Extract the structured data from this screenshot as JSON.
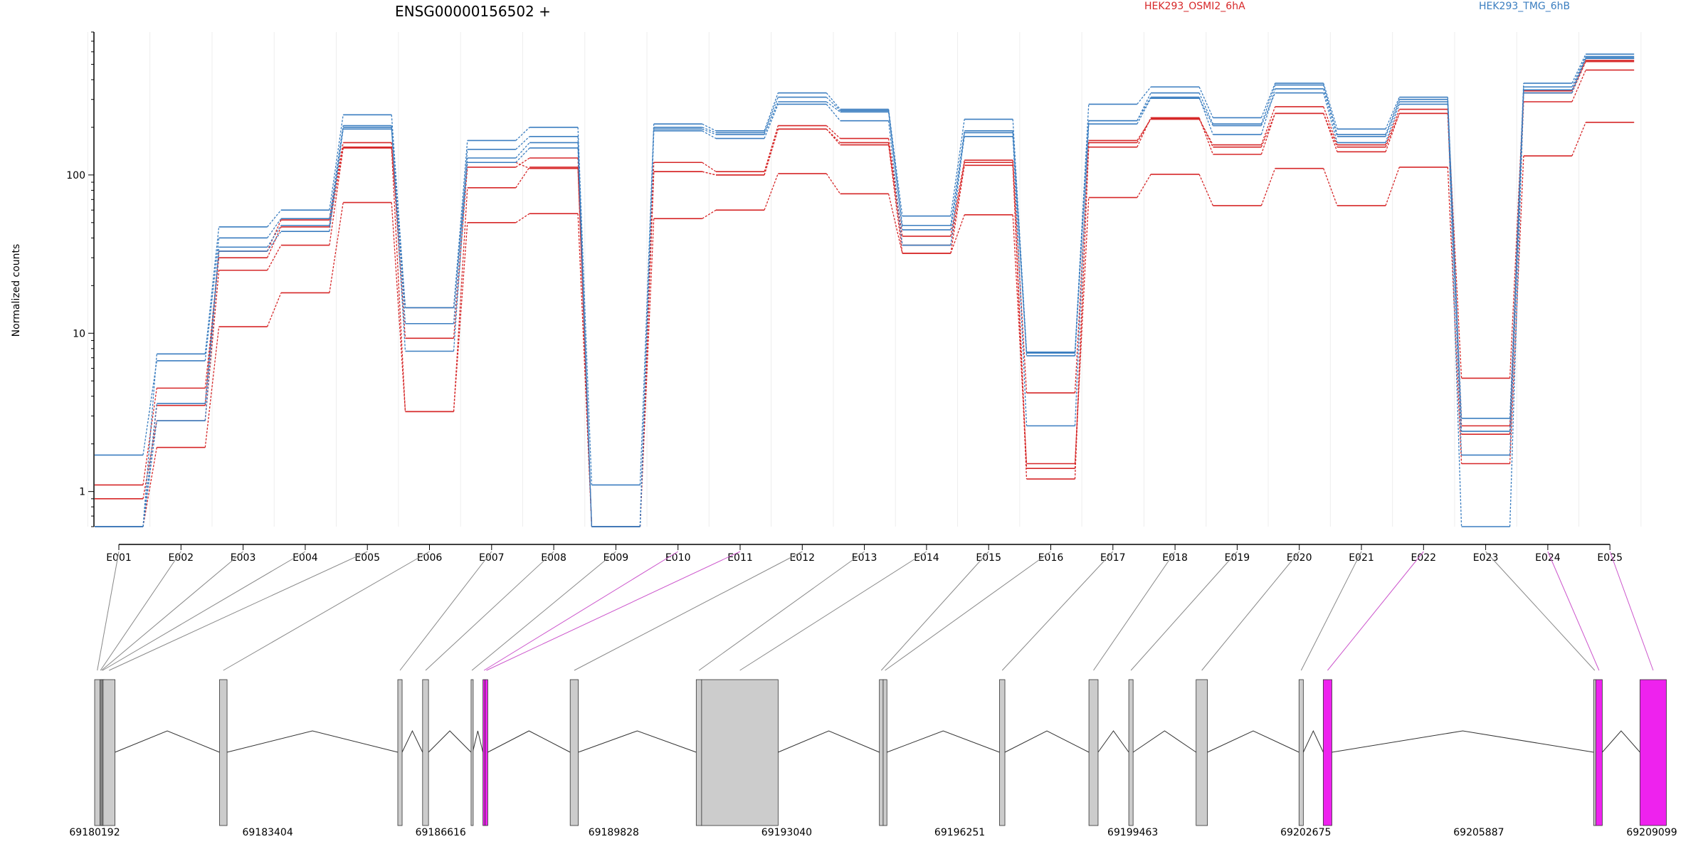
{
  "title": "ENSG00000156502 +",
  "chart_data": {
    "type": "line",
    "ylabel": "Normalized counts",
    "yscale": "log",
    "ylim": [
      0.6,
      800
    ],
    "yticks": [
      "1",
      "10",
      "100"
    ],
    "categories": [
      "E001",
      "E002",
      "E003",
      "E004",
      "E005",
      "E006",
      "E007",
      "E008",
      "E009",
      "E010",
      "E011",
      "E012",
      "E013",
      "E014",
      "E015",
      "E016",
      "E017",
      "E018",
      "E019",
      "E020",
      "E021",
      "E022",
      "E023",
      "E024",
      "E025"
    ],
    "legend": [
      {
        "name": "HEK293_OSMI2_6hA",
        "color": "#d62728"
      },
      {
        "name": "HEK293_TMG_6hB",
        "color": "#3b7ec0"
      }
    ],
    "series": [
      {
        "group": "red",
        "values": [
          0.6,
          3.5,
          33,
          52,
          160,
          9.3,
          112,
          128,
          0.6,
          120,
          105,
          205,
          170,
          41,
          124,
          4.2,
          165,
          225,
          155,
          270,
          155,
          260,
          5.2,
          340,
          530
        ]
      },
      {
        "group": "red",
        "values": [
          1.1,
          4.5,
          30,
          47,
          150,
          14.5,
          120,
          110,
          0.6,
          105,
          100,
          195,
          160,
          36,
          120,
          1.4,
          150,
          230,
          135,
          245,
          150,
          245,
          2.6,
          330,
          520
        ]
      },
      {
        "group": "red",
        "values": [
          0.9,
          2.8,
          25,
          36,
          148,
          3.2,
          83,
          112,
          0.6,
          105,
          100,
          195,
          155,
          32,
          115,
          1.2,
          160,
          228,
          150,
          245,
          140,
          245,
          2.3,
          290,
          460
        ]
      },
      {
        "group": "red",
        "values": [
          0.6,
          1.9,
          11,
          18,
          67,
          3.2,
          50,
          57,
          0.6,
          53,
          60,
          102,
          76,
          32,
          56,
          1.5,
          72,
          101,
          64,
          110,
          64,
          112,
          1.5,
          132,
          215
        ]
      },
      {
        "group": "blue",
        "values": [
          0.6,
          7.4,
          47,
          60,
          240,
          14.5,
          165,
          200,
          1.1,
          210,
          190,
          330,
          260,
          55,
          225,
          7.6,
          280,
          360,
          230,
          380,
          195,
          310,
          2.9,
          380,
          580
        ]
      },
      {
        "group": "blue",
        "values": [
          1.7,
          6.7,
          40,
          53,
          205,
          11.5,
          145,
          175,
          0.6,
          200,
          185,
          310,
          255,
          48,
          190,
          7.5,
          220,
          330,
          210,
          370,
          180,
          300,
          2.4,
          360,
          560
        ]
      },
      {
        "group": "blue",
        "values": [
          0.6,
          3.6,
          35,
          48,
          200,
          7.7,
          128,
          160,
          0.6,
          195,
          180,
          290,
          250,
          45,
          175,
          7.2,
          220,
          310,
          180,
          350,
          175,
          290,
          1.7,
          345,
          550
        ]
      },
      {
        "group": "blue",
        "values": [
          0.6,
          2.8,
          33,
          44,
          195,
          14.5,
          120,
          148,
          0.6,
          190,
          170,
          280,
          220,
          36,
          185,
          2.6,
          210,
          305,
          205,
          330,
          160,
          280,
          0.6,
          330,
          545
        ]
      }
    ]
  },
  "gene_model": {
    "coordinates": [
      "69180192",
      "69183404",
      "69186616",
      "69189828",
      "69193040",
      "69196251",
      "69199463",
      "69202675",
      "69205887",
      "69209099"
    ],
    "exon_fill": "#cccccc",
    "highlight_fill": "#ee22ee",
    "exons": [
      {
        "id": "E001",
        "start": 69180192,
        "end": 69180290,
        "highlight": false
      },
      {
        "id": "E002",
        "start": 69180290,
        "end": 69180310,
        "highlight": false
      },
      {
        "id": "E003",
        "start": 69180310,
        "end": 69180330,
        "highlight": false
      },
      {
        "id": "E004",
        "start": 69180330,
        "end": 69180350,
        "highlight": false
      },
      {
        "id": "E005",
        "start": 69180350,
        "end": 69180570,
        "highlight": false
      },
      {
        "id": "E006",
        "start": 69182510,
        "end": 69182650,
        "highlight": false
      },
      {
        "id": "E007",
        "start": 69185820,
        "end": 69185900,
        "highlight": false
      },
      {
        "id": "E008",
        "start": 69186280,
        "end": 69186390,
        "highlight": false
      },
      {
        "id": "E009",
        "start": 69187180,
        "end": 69187210,
        "highlight": false
      },
      {
        "id": "E010",
        "start": 69187400,
        "end": 69187440,
        "highlight": true
      },
      {
        "id": "E011",
        "start": 69187440,
        "end": 69187490,
        "highlight": true
      },
      {
        "id": "E012",
        "start": 69189020,
        "end": 69189170,
        "highlight": false
      },
      {
        "id": "E013",
        "start": 69191360,
        "end": 69191460,
        "highlight": false
      },
      {
        "id": "E014",
        "start": 69191460,
        "end": 69192880,
        "highlight": false
      },
      {
        "id": "E015",
        "start": 69194760,
        "end": 69194830,
        "highlight": false
      },
      {
        "id": "E016",
        "start": 69194830,
        "end": 69194900,
        "highlight": false
      },
      {
        "id": "E017",
        "start": 69196990,
        "end": 69197090,
        "highlight": false
      },
      {
        "id": "E018",
        "start": 69198650,
        "end": 69198820,
        "highlight": false
      },
      {
        "id": "E019",
        "start": 69199390,
        "end": 69199470,
        "highlight": false
      },
      {
        "id": "E020",
        "start": 69200640,
        "end": 69200850,
        "highlight": false
      },
      {
        "id": "E021",
        "start": 69202550,
        "end": 69202630,
        "highlight": false
      },
      {
        "id": "E022",
        "start": 69203000,
        "end": 69203160,
        "highlight": true
      },
      {
        "id": "E023",
        "start": 69208020,
        "end": 69208060,
        "highlight": false
      },
      {
        "id": "E024",
        "start": 69208060,
        "end": 69208180,
        "highlight": true
      },
      {
        "id": "E025",
        "start": 69208880,
        "end": 69209370,
        "highlight": true
      }
    ]
  }
}
